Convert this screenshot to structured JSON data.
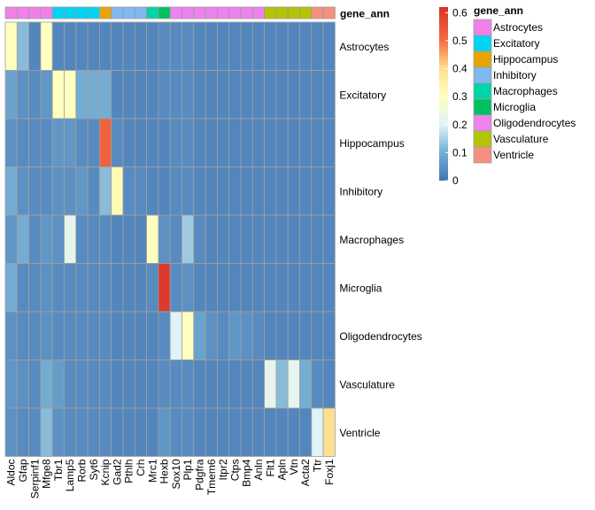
{
  "chart_data": {
    "type": "heatmap",
    "title": "",
    "annotation_title": "gene_ann",
    "columns": [
      "Aldoc",
      "Gfap",
      "Serpinf1",
      "Mfge8",
      "Tbr1",
      "Lamp5",
      "Rorb",
      "Syt6",
      "Kcnip",
      "Gad2",
      "Pthlh",
      "Crh",
      "Mrc1",
      "Hexb",
      "Sox10",
      "Plp1",
      "Pdgfra",
      "Tmem6",
      "Itpr2",
      "Ctps",
      "Bmp4",
      "Anln",
      "Flt1",
      "Apln",
      "Vtn",
      "Acta2",
      "Ttr",
      "Foxj1"
    ],
    "rows": [
      "Astrocytes",
      "Excitatory",
      "Hippocampus",
      "Inhibitory",
      "Macrophages",
      "Microglia",
      "Oligodendrocytes",
      "Vasculature",
      "Ventricle"
    ],
    "column_annotation": [
      "Astrocytes",
      "Astrocytes",
      "Astrocytes",
      "Astrocytes",
      "Excitatory",
      "Excitatory",
      "Excitatory",
      "Excitatory",
      "Hippocampus",
      "Inhibitory",
      "Inhibitory",
      "Inhibitory",
      "Macrophages",
      "Microglia",
      "Oligodendrocytes",
      "Oligodendrocytes",
      "Oligodendrocytes",
      "Oligodendrocytes",
      "Oligodendrocytes",
      "Oligodendrocytes",
      "Oligodendrocytes",
      "Oligodendrocytes",
      "Vasculature",
      "Vasculature",
      "Vasculature",
      "Vasculature",
      "Ventricle",
      "Ventricle"
    ],
    "values": [
      [
        0.3,
        0.12,
        0.03,
        0.3,
        0.03,
        0.03,
        0.03,
        0.03,
        0.03,
        0.03,
        0.03,
        0.03,
        0.03,
        0.04,
        0.04,
        0.04,
        0.03,
        0.03,
        0.03,
        0.03,
        0.03,
        0.03,
        0.03,
        0.03,
        0.03,
        0.03,
        0.03,
        0.03
      ],
      [
        0.08,
        0.05,
        0.04,
        0.06,
        0.3,
        0.3,
        0.1,
        0.1,
        0.1,
        0.03,
        0.03,
        0.03,
        0.03,
        0.04,
        0.04,
        0.04,
        0.03,
        0.03,
        0.03,
        0.03,
        0.03,
        0.03,
        0.03,
        0.03,
        0.03,
        0.03,
        0.03,
        0.03
      ],
      [
        0.05,
        0.04,
        0.04,
        0.04,
        0.06,
        0.06,
        0.04,
        0.04,
        0.52,
        0.04,
        0.03,
        0.03,
        0.03,
        0.03,
        0.04,
        0.04,
        0.03,
        0.03,
        0.03,
        0.03,
        0.03,
        0.03,
        0.03,
        0.03,
        0.03,
        0.03,
        0.03,
        0.03
      ],
      [
        0.1,
        0.05,
        0.04,
        0.04,
        0.05,
        0.05,
        0.06,
        0.04,
        0.12,
        0.32,
        0.04,
        0.04,
        0.03,
        0.03,
        0.04,
        0.04,
        0.03,
        0.03,
        0.03,
        0.03,
        0.03,
        0.03,
        0.03,
        0.03,
        0.03,
        0.03,
        0.03,
        0.03
      ],
      [
        0.06,
        0.1,
        0.04,
        0.06,
        0.05,
        0.22,
        0.04,
        0.04,
        0.04,
        0.03,
        0.03,
        0.03,
        0.3,
        0.05,
        0.04,
        0.14,
        0.04,
        0.03,
        0.03,
        0.03,
        0.03,
        0.03,
        0.03,
        0.03,
        0.03,
        0.03,
        0.03,
        0.03
      ],
      [
        0.1,
        0.04,
        0.04,
        0.05,
        0.04,
        0.04,
        0.04,
        0.04,
        0.04,
        0.03,
        0.03,
        0.03,
        0.04,
        0.6,
        0.04,
        0.05,
        0.03,
        0.03,
        0.03,
        0.03,
        0.03,
        0.03,
        0.03,
        0.03,
        0.03,
        0.03,
        0.03,
        0.03
      ],
      [
        0.05,
        0.04,
        0.04,
        0.05,
        0.04,
        0.04,
        0.04,
        0.04,
        0.04,
        0.03,
        0.03,
        0.03,
        0.03,
        0.04,
        0.2,
        0.3,
        0.08,
        0.05,
        0.04,
        0.06,
        0.05,
        0.04,
        0.03,
        0.03,
        0.03,
        0.03,
        0.03,
        0.03
      ],
      [
        0.06,
        0.05,
        0.04,
        0.1,
        0.07,
        0.04,
        0.04,
        0.04,
        0.04,
        0.03,
        0.03,
        0.03,
        0.03,
        0.04,
        0.04,
        0.04,
        0.03,
        0.03,
        0.03,
        0.03,
        0.03,
        0.03,
        0.22,
        0.12,
        0.22,
        0.1,
        0.04,
        0.03
      ],
      [
        0.05,
        0.04,
        0.04,
        0.12,
        0.05,
        0.04,
        0.04,
        0.04,
        0.04,
        0.03,
        0.03,
        0.03,
        0.03,
        0.06,
        0.04,
        0.04,
        0.03,
        0.03,
        0.03,
        0.03,
        0.03,
        0.03,
        0.03,
        0.03,
        0.03,
        0.03,
        0.2,
        0.4
      ]
    ],
    "color_scale": {
      "min": 0,
      "max": 0.62,
      "stops": [
        {
          "v": 0.0,
          "color": "#4575b4"
        },
        {
          "v": 0.1,
          "color": "#74add1"
        },
        {
          "v": 0.2,
          "color": "#e0f3f8"
        },
        {
          "v": 0.3,
          "color": "#ffffbf"
        },
        {
          "v": 0.4,
          "color": "#fee090"
        },
        {
          "v": 0.5,
          "color": "#f46d43"
        },
        {
          "v": 0.62,
          "color": "#d73027"
        }
      ],
      "ticks": [
        0,
        0.1,
        0.2,
        0.3,
        0.4,
        0.5,
        0.6
      ],
      "tick_labels": [
        "0",
        "0.1",
        "0.2",
        "0.3",
        "0.4",
        "0.5",
        "0.6"
      ]
    },
    "annotation_colors": {
      "Astrocytes": "#f080e8",
      "Excitatory": "#00d4f2",
      "Hippocampus": "#e8a400",
      "Inhibitory": "#80b8f0",
      "Macrophages": "#00d4a8",
      "Microglia": "#00c060",
      "Oligodendrocytes": "#ee82ee",
      "Vasculature": "#b4c400",
      "Ventricle": "#f59080"
    },
    "legend_entries": [
      "Astrocytes",
      "Excitatory",
      "Hippocampus",
      "Inhibitory",
      "Macrophages",
      "Microglia",
      "Oligodendrocytes",
      "Vasculature",
      "Ventricle"
    ]
  }
}
